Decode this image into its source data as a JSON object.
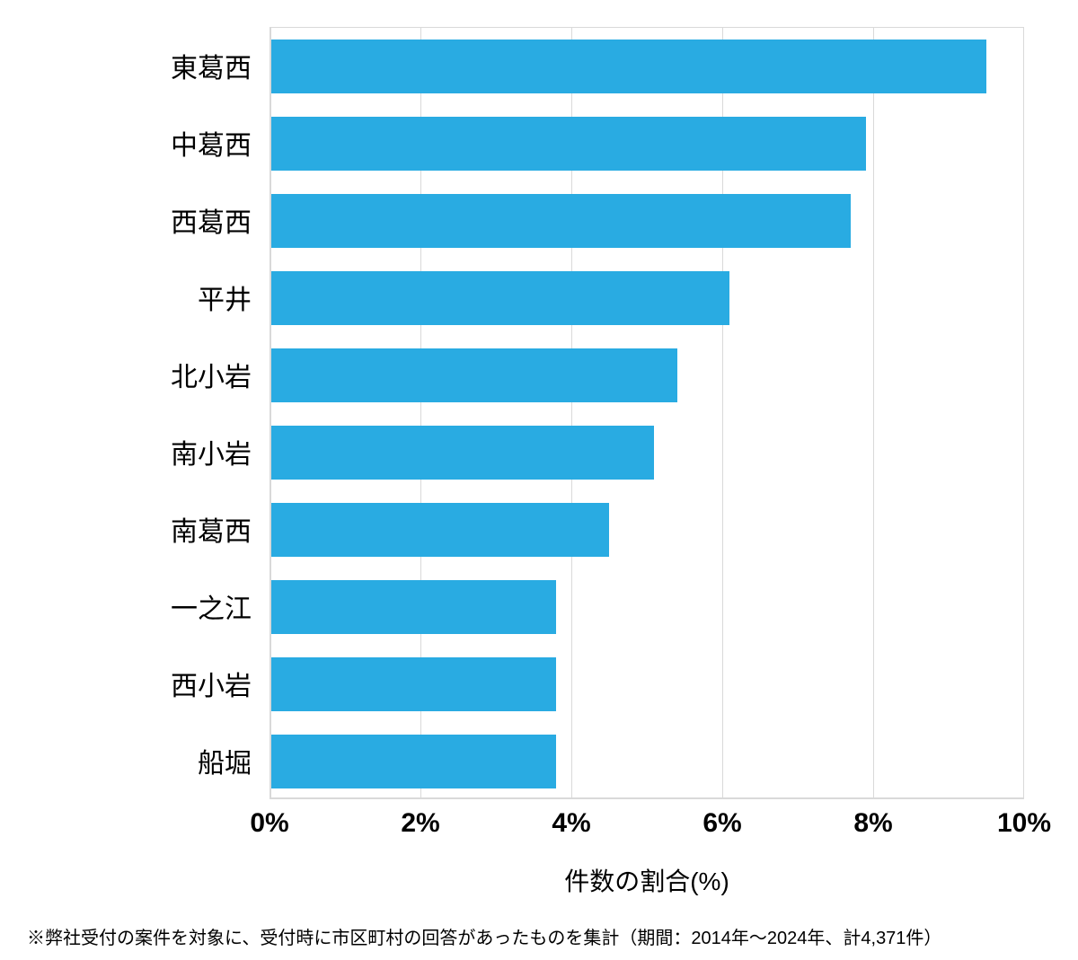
{
  "chart": {
    "type": "bar_horizontal",
    "categories": [
      "東葛西",
      "中葛西",
      "西葛西",
      "平井",
      "北小岩",
      "南小岩",
      "南葛西",
      "一之江",
      "西小岩",
      "船堀"
    ],
    "values": [
      9.5,
      7.9,
      7.7,
      6.1,
      5.4,
      5.1,
      4.5,
      3.8,
      3.8,
      3.8
    ],
    "bar_color": "#29abe2",
    "background_color": "#ffffff",
    "grid_color": "#d9d9d9",
    "xlim": [
      0,
      10
    ],
    "xtick_step": 2,
    "xticks": [
      "0%",
      "2%",
      "4%",
      "6%",
      "8%",
      "10%"
    ],
    "xlabel": "件数の割合(%)",
    "bar_height_ratio": 0.7,
    "label_fontsize": 30,
    "tick_fontsize": 30,
    "tick_fontweight": "700",
    "xlabel_fontsize": 28
  },
  "footnote": "※弊社受付の案件を対象に、受付時に市区町村の回答があったものを集計（期間：2014年～2024年、計4,371件）"
}
